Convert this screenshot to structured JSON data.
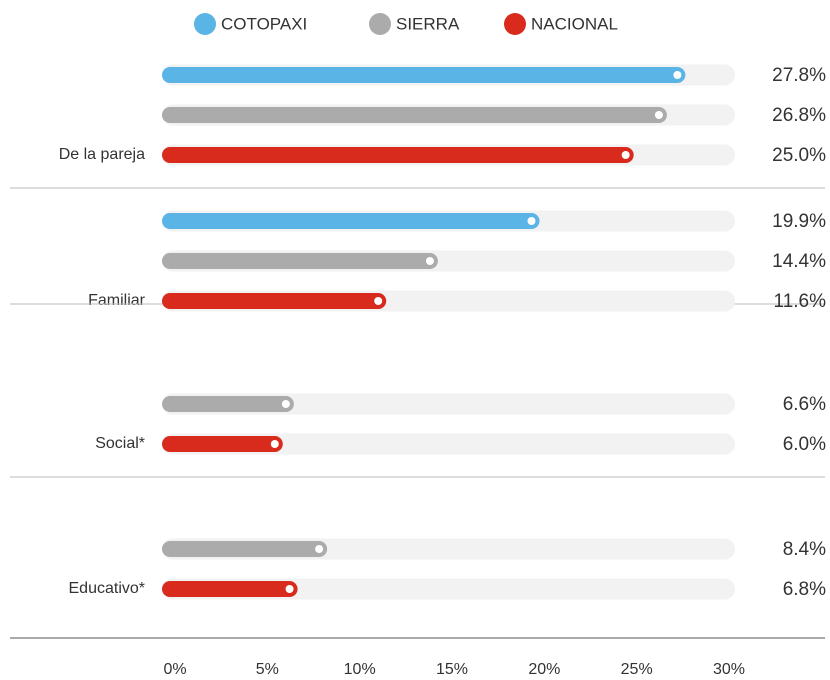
{
  "chart_data": {
    "type": "bar",
    "orientation": "horizontal",
    "categories": [
      "De la pareja",
      "Familiar",
      "Social*",
      "Educativo*"
    ],
    "series": [
      {
        "name": "COTOPAXI",
        "color": "#5ab4e6",
        "values": [
          27.8,
          19.9,
          null,
          null
        ],
        "value_labels": [
          "27.8%",
          "19.9%",
          null,
          null
        ]
      },
      {
        "name": "SIERRA",
        "color": "#ababab",
        "values": [
          26.8,
          14.4,
          6.6,
          8.4
        ],
        "value_labels": [
          "26.8%",
          "14.4%",
          "6.6%",
          "8.4%"
        ]
      },
      {
        "name": "NACIONAL",
        "color": "#d82a1d",
        "values": [
          25,
          11.6,
          6,
          6.8
        ],
        "value_labels": [
          "25.0%",
          "11.6%",
          "6.0%",
          "6.8%"
        ]
      }
    ],
    "xlim": [
      0,
      30
    ],
    "xticks": [
      {
        "value": 0,
        "label": "0%"
      },
      {
        "value": 5,
        "label": "5%"
      },
      {
        "value": 10,
        "label": "10%"
      },
      {
        "value": 15,
        "label": "15%"
      },
      {
        "value": 20,
        "label": "20%"
      },
      {
        "value": 25,
        "label": "25%"
      },
      {
        "value": 30,
        "label": "30%"
      }
    ],
    "legend": "top"
  }
}
